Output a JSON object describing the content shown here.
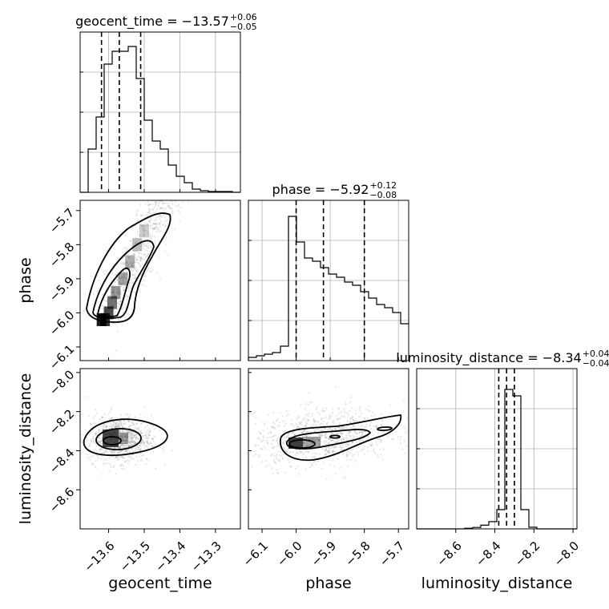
{
  "chart_data": {
    "type": "corner",
    "parameters": [
      "geocent_time",
      "phase",
      "luminosity_distance"
    ],
    "ranges": {
      "geocent_time": [
        -13.68,
        -13.23
      ],
      "phase": [
        -6.14,
        -5.67
      ],
      "luminosity_distance": [
        -8.8,
        -7.98
      ]
    },
    "ticks": {
      "geocent_time": [
        -13.6,
        -13.5,
        -13.4,
        -13.3
      ],
      "phase": [
        -6.1,
        -6.0,
        -5.9,
        -5.8,
        -5.7
      ],
      "luminosity_distance": [
        -8.6,
        -8.4,
        -8.2,
        -8.0
      ]
    },
    "tick_labels": {
      "geocent_time": [
        "−13.6",
        "−13.5",
        "−13.4",
        "−13.3"
      ],
      "phase": [
        "−6.1",
        "−6.0",
        "−5.9",
        "−5.8",
        "−5.7"
      ],
      "luminosity_distance": [
        "−8.6",
        "−8.4",
        "−8.2",
        "−8.0"
      ]
    },
    "titles": {
      "geocent_time": {
        "base": "geocent_time = −13.57",
        "plus": "+0.06",
        "minus": "−0.05"
      },
      "phase": {
        "base": "phase = −5.92",
        "plus": "+0.12",
        "minus": "−0.08"
      },
      "luminosity_distance": {
        "base": "luminosity_distance = −8.34",
        "plus": "+0.04",
        "minus": "−0.04"
      }
    },
    "quantiles": {
      "geocent_time": [
        -13.62,
        -13.57,
        -13.51
      ],
      "phase": [
        -6.0,
        -5.92,
        -5.8
      ],
      "luminosity_distance": [
        -8.38,
        -8.34,
        -8.3
      ]
    },
    "histograms": {
      "geocent_time": {
        "edges_range": [
          -13.68,
          -13.23
        ],
        "counts": [
          0.0,
          0.27,
          0.47,
          0.8,
          0.88,
          0.88,
          0.91,
          0.71,
          0.45,
          0.32,
          0.27,
          0.17,
          0.1,
          0.06,
          0.02,
          0.01,
          0.005,
          0.005,
          0.005,
          0.0
        ]
      },
      "phase": {
        "edges_range": [
          -6.14,
          -5.67
        ],
        "counts": [
          0.02,
          0.03,
          0.04,
          0.05,
          0.09,
          0.9,
          0.74,
          0.64,
          0.62,
          0.58,
          0.54,
          0.52,
          0.49,
          0.47,
          0.43,
          0.39,
          0.35,
          0.33,
          0.3,
          0.23
        ]
      },
      "luminosity_distance": {
        "edges_range": [
          -8.8,
          -7.98
        ],
        "counts": [
          0,
          0,
          0,
          0,
          0,
          0,
          0.004,
          0.009,
          0.023,
          0.045,
          0.12,
          0.87,
          0.83,
          0.12,
          0.01,
          0,
          0,
          0,
          0,
          0
        ]
      }
    },
    "show_grid_on_diagonal": true
  }
}
